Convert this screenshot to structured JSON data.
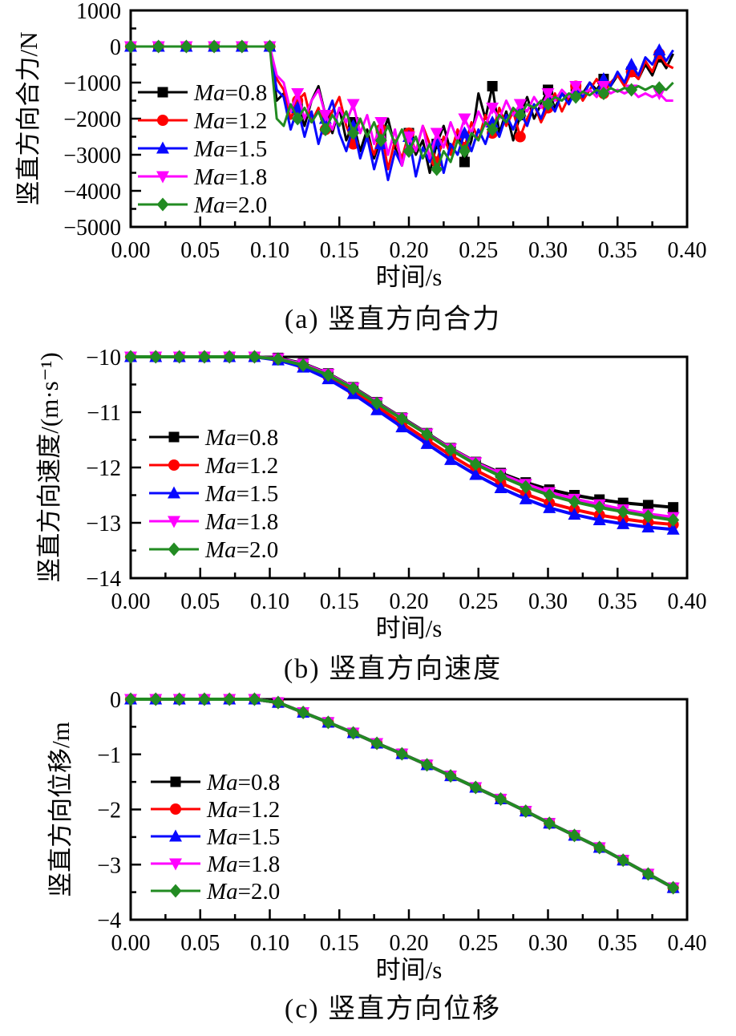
{
  "chart_data": [
    {
      "id": "a",
      "type": "line",
      "caption": "(a) 竖直方向合力",
      "xlabel": "时间/s",
      "ylabel": "竖直方向合力/N",
      "xlim": [
        0,
        0.4
      ],
      "ylim": [
        -5000,
        1000
      ],
      "grid": false,
      "legend_position": "inside-upper-left",
      "x_ticks": {
        "values": [
          0,
          0.05,
          0.1,
          0.15,
          0.2,
          0.25,
          0.3,
          0.35,
          0.4
        ],
        "labels": [
          "0.00",
          "0.05",
          "0.10",
          "0.15",
          "0.20",
          "0.25",
          "0.30",
          "0.35",
          "0.40"
        ]
      },
      "y_ticks": {
        "values": [
          1000,
          0,
          -1000,
          -2000,
          -3000,
          -4000,
          -5000
        ],
        "labels": [
          "1000",
          "0",
          "−1000",
          "−2000",
          "−3000",
          "−4000",
          "−5000"
        ]
      },
      "x": {
        "start": 0,
        "step": 0.005,
        "count": 79
      },
      "marker_every": 4,
      "series": [
        {
          "name": "Ma=0.8",
          "color": "#000000",
          "marker": "square",
          "y": [
            0,
            0,
            0,
            0,
            0,
            0,
            0,
            0,
            0,
            0,
            0,
            0,
            0,
            0,
            0,
            0,
            0,
            0,
            0,
            0,
            0,
            -1500,
            -1300,
            -2000,
            -1600,
            -2200,
            -1500,
            -1100,
            -1900,
            -2400,
            -1700,
            -2600,
            -2100,
            -2900,
            -2300,
            -3100,
            -2500,
            -2000,
            -2800,
            -3300,
            -2400,
            -3000,
            -2600,
            -3500,
            -2700,
            -2200,
            -2900,
            -2400,
            -3200,
            -2600,
            -1300,
            -2000,
            -1100,
            -2400,
            -1800,
            -2600,
            -1900,
            -1400,
            -2000,
            -1600,
            -1200,
            -1700,
            -1300,
            -1500,
            -1100,
            -1300,
            -1000,
            -1200,
            -900,
            -1100,
            -800,
            -1000,
            -700,
            -900,
            -500,
            -800,
            -300,
            -600,
            -200
          ]
        },
        {
          "name": "Ma=1.2",
          "color": "#ff0000",
          "marker": "circle",
          "y": [
            0,
            0,
            0,
            0,
            0,
            0,
            0,
            0,
            0,
            0,
            0,
            0,
            0,
            0,
            0,
            0,
            0,
            0,
            0,
            0,
            0,
            -900,
            -1200,
            -2000,
            -1500,
            -1300,
            -2100,
            -1700,
            -2300,
            -1800,
            -1400,
            -2200,
            -2700,
            -2000,
            -2500,
            -3000,
            -2300,
            -3400,
            -2600,
            -3100,
            -2400,
            -2900,
            -2200,
            -2700,
            -3200,
            -2500,
            -3000,
            -2300,
            -2800,
            -2100,
            -2600,
            -1900,
            -2400,
            -1700,
            -2200,
            -1800,
            -2500,
            -2000,
            -1600,
            -2100,
            -1700,
            -1300,
            -1800,
            -1400,
            -1100,
            -1500,
            -1200,
            -900,
            -1300,
            -1000,
            -800,
            -1100,
            -700,
            -900,
            -400,
            -700,
            -200,
            -500,
            -600
          ]
        },
        {
          "name": "Ma=1.5",
          "color": "#0808ff",
          "marker": "triangle-up",
          "y": [
            0,
            0,
            0,
            0,
            0,
            0,
            0,
            0,
            0,
            0,
            0,
            0,
            0,
            0,
            0,
            0,
            0,
            0,
            0,
            0,
            0,
            -1200,
            -1400,
            -2300,
            -1700,
            -2500,
            -1800,
            -2700,
            -2000,
            -1500,
            -2400,
            -2900,
            -2200,
            -3100,
            -2500,
            -3400,
            -2700,
            -3700,
            -2900,
            -3300,
            -2500,
            -3600,
            -2800,
            -3200,
            -2600,
            -3500,
            -2700,
            -3000,
            -2400,
            -2900,
            -2300,
            -2700,
            -2100,
            -2500,
            -1900,
            -2300,
            -1800,
            -2200,
            -1600,
            -2000,
            -1500,
            -1800,
            -1300,
            -1600,
            -1200,
            -1400,
            -1000,
            -1300,
            -900,
            -1100,
            -700,
            -1000,
            -500,
            -800,
            -300,
            -500,
            -100,
            -400,
            -100
          ]
        },
        {
          "name": "Ma=1.8",
          "color": "#ff00ff",
          "marker": "triangle-down",
          "y": [
            0,
            0,
            0,
            0,
            0,
            0,
            0,
            0,
            0,
            0,
            0,
            0,
            0,
            0,
            0,
            0,
            0,
            0,
            0,
            0,
            0,
            -800,
            -1000,
            -1800,
            -1300,
            -2000,
            -1500,
            -1200,
            -1900,
            -2300,
            -1700,
            -2100,
            -1600,
            -2400,
            -1900,
            -2700,
            -2100,
            -3000,
            -2300,
            -3300,
            -2500,
            -2900,
            -2200,
            -3100,
            -2400,
            -2800,
            -2100,
            -2600,
            -2000,
            -2400,
            -1800,
            -2200,
            -1700,
            -2000,
            -1500,
            -1900,
            -1600,
            -1800,
            -1400,
            -1700,
            -1300,
            -1500,
            -1200,
            -1400,
            -1100,
            -1300,
            -1200,
            -1400,
            -1100,
            -1300,
            -1200,
            -1300,
            -1200,
            -1400,
            -1300,
            -1400,
            -1300,
            -1500,
            -1500
          ]
        },
        {
          "name": "Ma=2.0",
          "color": "#228B22",
          "marker": "diamond",
          "y": [
            0,
            0,
            0,
            0,
            0,
            0,
            0,
            0,
            0,
            0,
            0,
            0,
            0,
            0,
            0,
            0,
            0,
            0,
            0,
            0,
            0,
            -2000,
            -2200,
            -1600,
            -2000,
            -1700,
            -2100,
            -1800,
            -2300,
            -1900,
            -2200,
            -1800,
            -2400,
            -2000,
            -2500,
            -2100,
            -2600,
            -2200,
            -2700,
            -2300,
            -2900,
            -2500,
            -3100,
            -2700,
            -3400,
            -2900,
            -3200,
            -2600,
            -2900,
            -2400,
            -2600,
            -2100,
            -2300,
            -1900,
            -2100,
            -1700,
            -1900,
            -1600,
            -1700,
            -1500,
            -1600,
            -1400,
            -1500,
            -1300,
            -1400,
            -1250,
            -1350,
            -1200,
            -1300,
            -1150,
            -1250,
            -1150,
            -1200,
            -1100,
            -1200,
            -1100,
            -1150,
            -1200,
            -1000
          ]
        }
      ]
    },
    {
      "id": "b",
      "type": "line",
      "caption": "(b) 竖直方向速度",
      "xlabel": "时间/s",
      "ylabel": "竖直方向速度/(m·s⁻¹)",
      "xlim": [
        0,
        0.4
      ],
      "ylim": [
        -14,
        -10
      ],
      "grid": false,
      "legend_position": "inside-middle-left",
      "x_ticks": {
        "values": [
          0,
          0.05,
          0.1,
          0.15,
          0.2,
          0.25,
          0.3,
          0.35,
          0.4
        ],
        "labels": [
          "0.00",
          "0.05",
          "0.10",
          "0.15",
          "0.20",
          "0.25",
          "0.30",
          "0.35",
          "0.40"
        ]
      },
      "y_ticks": {
        "values": [
          -10,
          -11,
          -12,
          -13,
          -14
        ],
        "labels": [
          "−10",
          "−11",
          "−12",
          "−13",
          "−14"
        ]
      },
      "x": [
        0,
        0.018,
        0.035,
        0.053,
        0.071,
        0.089,
        0.106,
        0.124,
        0.142,
        0.16,
        0.177,
        0.195,
        0.213,
        0.23,
        0.248,
        0.266,
        0.284,
        0.301,
        0.319,
        0.337,
        0.354,
        0.372,
        0.39
      ],
      "marker_every": 1,
      "series": [
        {
          "name": "Ma=0.8",
          "color": "#000000",
          "marker": "square",
          "y": [
            -10,
            -10,
            -10,
            -10,
            -10,
            -10,
            -10.02,
            -10.12,
            -10.3,
            -10.55,
            -10.82,
            -11.1,
            -11.38,
            -11.65,
            -11.9,
            -12.1,
            -12.27,
            -12.4,
            -12.5,
            -12.58,
            -12.64,
            -12.68,
            -12.72
          ]
        },
        {
          "name": "Ma=1.2",
          "color": "#ff0000",
          "marker": "circle",
          "y": [
            -10,
            -10,
            -10,
            -10,
            -10,
            -10,
            -10.05,
            -10.17,
            -10.36,
            -10.62,
            -10.9,
            -11.2,
            -11.5,
            -11.78,
            -12.05,
            -12.28,
            -12.48,
            -12.64,
            -12.76,
            -12.86,
            -12.93,
            -12.99,
            -13.03
          ]
        },
        {
          "name": "Ma=1.5",
          "color": "#0808ff",
          "marker": "triangle-up",
          "y": [
            -10,
            -10,
            -10,
            -10,
            -10,
            -10,
            -10.06,
            -10.19,
            -10.4,
            -10.67,
            -10.96,
            -11.27,
            -11.57,
            -11.86,
            -12.13,
            -12.37,
            -12.57,
            -12.73,
            -12.85,
            -12.95,
            -13.02,
            -13.08,
            -13.12
          ]
        },
        {
          "name": "Ma=1.8",
          "color": "#ff00ff",
          "marker": "triangle-down",
          "y": [
            -10,
            -10,
            -10,
            -10,
            -10,
            -10,
            -10.03,
            -10.13,
            -10.31,
            -10.56,
            -10.83,
            -11.11,
            -11.39,
            -11.66,
            -11.91,
            -12.12,
            -12.3,
            -12.45,
            -12.57,
            -12.67,
            -12.76,
            -12.84,
            -12.9
          ]
        },
        {
          "name": "Ma=2.0",
          "color": "#228B22",
          "marker": "diamond",
          "y": [
            -10,
            -10,
            -10,
            -10,
            -10,
            -10,
            -10.04,
            -10.15,
            -10.33,
            -10.57,
            -10.84,
            -11.12,
            -11.4,
            -11.68,
            -11.94,
            -12.16,
            -12.35,
            -12.5,
            -12.62,
            -12.72,
            -12.8,
            -12.88,
            -12.95
          ]
        }
      ]
    },
    {
      "id": "c",
      "type": "line",
      "caption": "(c) 竖直方向位移",
      "xlabel": "时间/s",
      "ylabel": "竖直方向位移/m",
      "xlim": [
        0,
        0.4
      ],
      "ylim": [
        -4,
        0
      ],
      "grid": false,
      "legend_position": "inside-middle-left",
      "x_ticks": {
        "values": [
          0,
          0.05,
          0.1,
          0.15,
          0.2,
          0.25,
          0.3,
          0.35,
          0.4
        ],
        "labels": [
          "0.00",
          "0.05",
          "0.10",
          "0.15",
          "0.20",
          "0.25",
          "0.30",
          "0.35",
          "0.40"
        ]
      },
      "y_ticks": {
        "values": [
          0,
          -1,
          -2,
          -3,
          -4
        ],
        "labels": [
          "0",
          "−1",
          "−2",
          "−3",
          "−4"
        ]
      },
      "x": [
        0,
        0.018,
        0.035,
        0.053,
        0.071,
        0.089,
        0.106,
        0.124,
        0.142,
        0.16,
        0.177,
        0.195,
        0.213,
        0.23,
        0.248,
        0.266,
        0.284,
        0.301,
        0.319,
        0.337,
        0.354,
        0.372,
        0.39
      ],
      "marker_every": 1,
      "series": [
        {
          "name": "Ma=0.8",
          "color": "#000000",
          "marker": "square",
          "y": [
            0,
            0,
            0,
            0,
            0,
            0,
            -0.06,
            -0.24,
            -0.42,
            -0.61,
            -0.8,
            -0.99,
            -1.19,
            -1.39,
            -1.6,
            -1.81,
            -2.03,
            -2.25,
            -2.47,
            -2.69,
            -2.92,
            -3.17,
            -3.42
          ]
        },
        {
          "name": "Ma=1.2",
          "color": "#ff0000",
          "marker": "circle",
          "y": [
            0,
            0,
            0,
            0,
            0,
            0,
            -0.06,
            -0.24,
            -0.42,
            -0.61,
            -0.8,
            -0.99,
            -1.19,
            -1.39,
            -1.6,
            -1.81,
            -2.03,
            -2.25,
            -2.47,
            -2.69,
            -2.92,
            -3.17,
            -3.42
          ]
        },
        {
          "name": "Ma=1.5",
          "color": "#0808ff",
          "marker": "triangle-up",
          "y": [
            0,
            0,
            0,
            0,
            0,
            0,
            -0.06,
            -0.24,
            -0.42,
            -0.61,
            -0.8,
            -0.99,
            -1.19,
            -1.39,
            -1.6,
            -1.81,
            -2.03,
            -2.25,
            -2.47,
            -2.69,
            -2.92,
            -3.17,
            -3.42
          ]
        },
        {
          "name": "Ma=1.8",
          "color": "#ff00ff",
          "marker": "triangle-down",
          "y": [
            0,
            0,
            0,
            0,
            0,
            0,
            -0.06,
            -0.24,
            -0.42,
            -0.61,
            -0.8,
            -0.99,
            -1.19,
            -1.39,
            -1.6,
            -1.81,
            -2.03,
            -2.25,
            -2.47,
            -2.69,
            -2.92,
            -3.17,
            -3.42
          ]
        },
        {
          "name": "Ma=2.0",
          "color": "#228B22",
          "marker": "diamond",
          "y": [
            0,
            0,
            0,
            0,
            0,
            0,
            -0.06,
            -0.24,
            -0.42,
            -0.61,
            -0.8,
            -0.99,
            -1.19,
            -1.39,
            -1.6,
            -1.81,
            -2.03,
            -2.25,
            -2.47,
            -2.69,
            -2.92,
            -3.17,
            -3.42
          ]
        }
      ]
    }
  ]
}
